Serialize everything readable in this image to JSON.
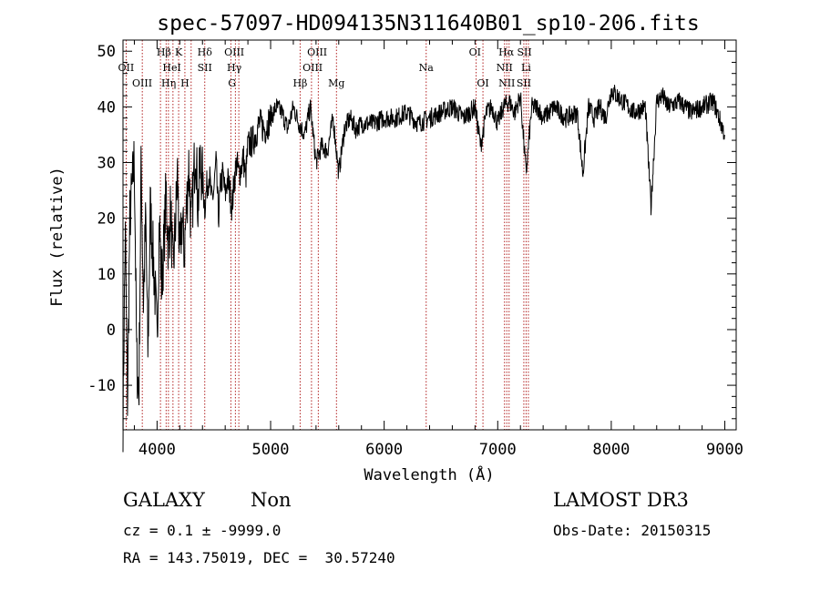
{
  "chart_data": {
    "type": "line",
    "title": "spec-57097-HD094135N311640B01_sp10-206.fits",
    "xlabel": "Wavelength (Å)",
    "ylabel": "Flux (relative)",
    "xlim": [
      3700,
      9100
    ],
    "ylim": [
      -18,
      52
    ],
    "xticks": [
      4000,
      5000,
      6000,
      7000,
      8000,
      9000
    ],
    "yticks": [
      -10,
      0,
      10,
      20,
      30,
      40,
      50
    ],
    "series": [
      {
        "name": "flux",
        "x": [
          3700,
          3720,
          3740,
          3760,
          3780,
          3800,
          3820,
          3840,
          3860,
          3880,
          3900,
          3920,
          3940,
          3960,
          3980,
          4000,
          4020,
          4040,
          4060,
          4080,
          4100,
          4120,
          4140,
          4160,
          4180,
          4200,
          4220,
          4240,
          4260,
          4280,
          4300,
          4320,
          4340,
          4360,
          4380,
          4400,
          4420,
          4440,
          4460,
          4480,
          4500,
          4520,
          4540,
          4560,
          4580,
          4600,
          4620,
          4640,
          4660,
          4680,
          4700,
          4720,
          4740,
          4760,
          4780,
          4800,
          4850,
          4900,
          4950,
          5000,
          5050,
          5100,
          5150,
          5200,
          5250,
          5300,
          5350,
          5400,
          5450,
          5500,
          5550,
          5600,
          5650,
          5700,
          5750,
          5800,
          5900,
          6000,
          6100,
          6200,
          6300,
          6400,
          6500,
          6600,
          6700,
          6800,
          6850,
          6900,
          6950,
          7000,
          7050,
          7100,
          7150,
          7200,
          7250,
          7300,
          7350,
          7400,
          7500,
          7600,
          7700,
          7750,
          7800,
          7850,
          7900,
          7950,
          8000,
          8100,
          8200,
          8300,
          8350,
          8400,
          8450,
          8500,
          8600,
          8700,
          8800,
          8900,
          8950,
          9000
        ],
        "values": [
          -16,
          18,
          -14,
          20,
          25,
          31,
          -5,
          -12,
          30,
          5,
          20,
          -5,
          22,
          15,
          8,
          -2,
          20,
          8,
          15,
          25,
          14,
          22,
          10,
          18,
          28,
          12,
          20,
          14,
          22,
          30,
          18,
          26,
          34,
          22,
          30,
          27,
          22,
          26,
          28,
          23,
          25,
          30,
          20,
          26,
          28,
          24,
          27,
          25,
          22,
          27,
          30,
          28,
          29,
          31,
          27,
          33,
          34,
          37,
          36,
          38,
          40,
          39,
          36,
          40,
          37,
          35,
          40,
          30,
          33,
          32,
          38,
          28,
          36,
          38,
          36,
          37,
          37,
          38,
          38,
          39,
          37,
          38,
          39,
          40,
          38,
          40,
          33,
          39,
          40,
          37,
          40,
          41,
          39,
          42,
          28,
          40,
          40,
          38,
          40,
          38,
          39,
          28,
          40,
          38,
          40,
          38,
          43,
          41,
          39,
          40,
          22,
          41,
          42,
          40,
          41,
          39,
          40,
          41,
          38,
          35
        ]
      }
    ],
    "spectral_lines": [
      {
        "label": "OII",
        "x": 3727,
        "row": 1
      },
      {
        "label": "OIII",
        "x": 3869,
        "row": 2
      },
      {
        "label": "Hβ",
        "x": 4060,
        "row": 0
      },
      {
        "label": "Hη",
        "x": 4102,
        "row": 2
      },
      {
        "label": "HeI",
        "x": 4130,
        "row": 1
      },
      {
        "label": "K",
        "x": 4190,
        "row": 0
      },
      {
        "label": "H",
        "x": 4245,
        "row": 2
      },
      {
        "label": "Hδ",
        "x": 4420,
        "row": 0
      },
      {
        "label": "SII",
        "x": 4420,
        "row": 1
      },
      {
        "label": "OIII",
        "x": 4680,
        "row": 0
      },
      {
        "label": "Hγ",
        "x": 4680,
        "row": 1
      },
      {
        "label": "G",
        "x": 4660,
        "row": 2
      },
      {
        "label": "Hβ",
        "x": 5260,
        "row": 2
      },
      {
        "label": "OIII",
        "x": 5410,
        "row": 0
      },
      {
        "label": "OIII",
        "x": 5370,
        "row": 1
      },
      {
        "label": "Mg",
        "x": 5580,
        "row": 2
      },
      {
        "label": "Na",
        "x": 6370,
        "row": 1
      },
      {
        "label": "OI",
        "x": 6800,
        "row": 0
      },
      {
        "label": "OI",
        "x": 6870,
        "row": 2
      },
      {
        "label": "Hα",
        "x": 7075,
        "row": 0
      },
      {
        "label": "SII",
        "x": 7235,
        "row": 0
      },
      {
        "label": "NII",
        "x": 7060,
        "row": 1
      },
      {
        "label": "Li",
        "x": 7250,
        "row": 1
      },
      {
        "label": "NII",
        "x": 7080,
        "row": 2
      },
      {
        "label": "SII",
        "x": 7230,
        "row": 2
      }
    ],
    "marker_x": [
      3728,
      3870,
      4030,
      4080,
      4100,
      4140,
      4190,
      4245,
      4300,
      4420,
      4650,
      4690,
      4720,
      5260,
      5360,
      5420,
      5580,
      6370,
      6810,
      6870,
      7060,
      7080,
      7100,
      7230,
      7250,
      7270
    ]
  },
  "info": {
    "object_class": "GALAXY",
    "subclass": "Non",
    "cz_line": "cz = 0.1 ± -9999.0",
    "coords_line": "RA = 143.75019, DEC =  30.57240",
    "survey": "LAMOST DR3",
    "obs_date": "Obs-Date: 20150315"
  }
}
